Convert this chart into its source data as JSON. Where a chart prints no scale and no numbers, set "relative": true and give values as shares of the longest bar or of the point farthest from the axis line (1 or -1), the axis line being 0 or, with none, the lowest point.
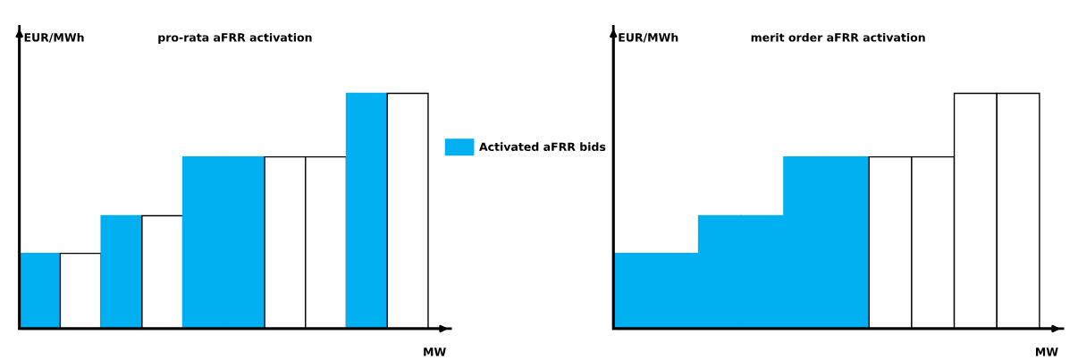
{
  "chart_data": [
    {
      "type": "bar",
      "title": "pro-rata aFRR activation",
      "ylabel": "EUR/MWh",
      "xlabel": "MW",
      "relative": true,
      "legend": "right",
      "categories": [
        null,
        null,
        null,
        null,
        null,
        null,
        null,
        null,
        null,
        null
      ],
      "series": [
        {
          "name": "Activated aFRR bids",
          "color": "#00b0f0",
          "values": [
            0.32,
            0.32,
            0.48,
            0.48,
            0.73,
            0.73,
            0.73,
            0.73,
            1,
            1
          ],
          "colors": [
            "#00b0f0",
            "#ffffff",
            "#00b0f0",
            "#ffffff",
            "#00b0f0",
            "#00b0f0",
            "#ffffff",
            "#ffffff",
            "#00b0f0",
            "#ffffff"
          ]
        }
      ]
    },
    {
      "type": "bar",
      "title": "merit order aFRR activation",
      "ylabel": "EUR/MWh",
      "xlabel": "MW",
      "relative": true,
      "categories": [
        null,
        null,
        null,
        null,
        null,
        null,
        null,
        null,
        null,
        null
      ],
      "series": [
        {
          "color": "#00b0f0",
          "values": [
            0.32,
            0.32,
            0.48,
            0.48,
            0.73,
            0.73,
            0.73,
            0.73,
            1,
            1
          ],
          "colors": [
            "#00b0f0",
            "#00b0f0",
            "#00b0f0",
            "#00b0f0",
            "#00b0f0",
            "#00b0f0",
            "#ffffff",
            "#ffffff",
            "#ffffff",
            "#ffffff"
          ]
        }
      ]
    }
  ]
}
